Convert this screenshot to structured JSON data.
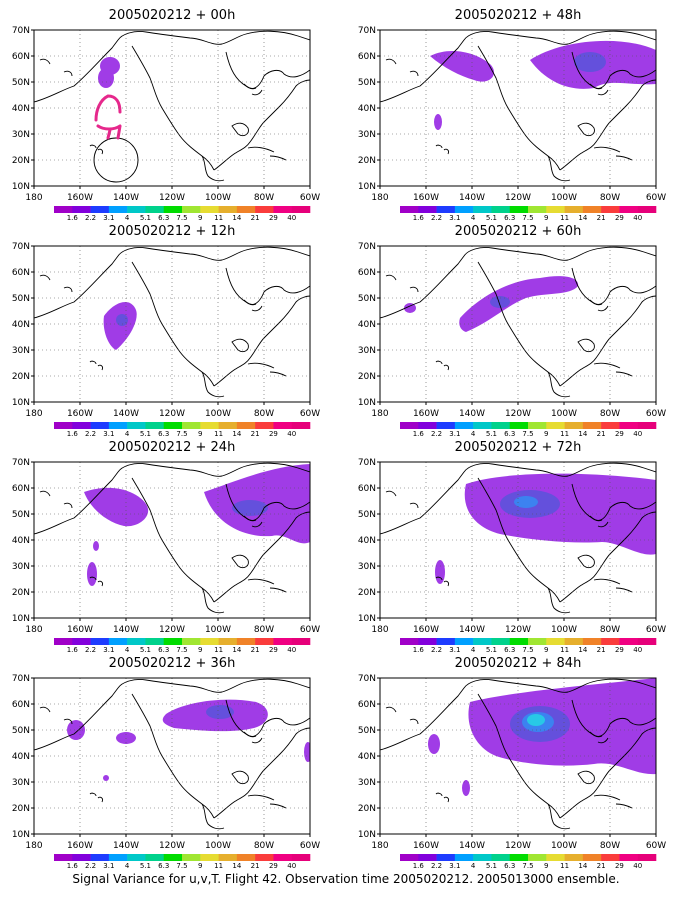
{
  "panels": [
    {
      "title": "2005020212 + 00h"
    },
    {
      "title": "2005020212 + 48h"
    },
    {
      "title": "2005020212 + 12h"
    },
    {
      "title": "2005020212 + 60h"
    },
    {
      "title": "2005020212 + 24h"
    },
    {
      "title": "2005020212 + 72h"
    },
    {
      "title": "2005020212 + 36h"
    },
    {
      "title": "2005020212 + 84h"
    }
  ],
  "axes": {
    "lon_ticks": [
      "180",
      "160W",
      "140W",
      "120W",
      "100W",
      "80W",
      "60W"
    ],
    "lat_ticks": [
      "70N",
      "60N",
      "50N",
      "40N",
      "30N",
      "20N",
      "10N"
    ],
    "lon_range": [
      -180,
      -60
    ],
    "lat_range": [
      10,
      70
    ],
    "grid": "dotted"
  },
  "colorbar": {
    "labels": [
      "1.6",
      "2.2",
      "3.1",
      "4",
      "5.1",
      "6.3",
      "7.5",
      "9",
      "11",
      "14",
      "21",
      "29",
      "40"
    ],
    "colors": [
      "#a000c8",
      "#8200dc",
      "#1e3cff",
      "#00a0ff",
      "#00c8c8",
      "#00d28c",
      "#00dc00",
      "#a0e632",
      "#e6dc32",
      "#e6af2d",
      "#f08228",
      "#fa3c3c",
      "#f00082",
      "#e6007a"
    ]
  },
  "field_colors": {
    "low": "#a03ce6",
    "mid": "#6450dc",
    "high": "#3c82f0",
    "peak": "#28c8e6",
    "track": "#e6288c",
    "coast": "#000000"
  },
  "caption": "Signal Variance for u,v,T. Flight 42. Observation time 2005020212. 2005013000 ensemble."
}
